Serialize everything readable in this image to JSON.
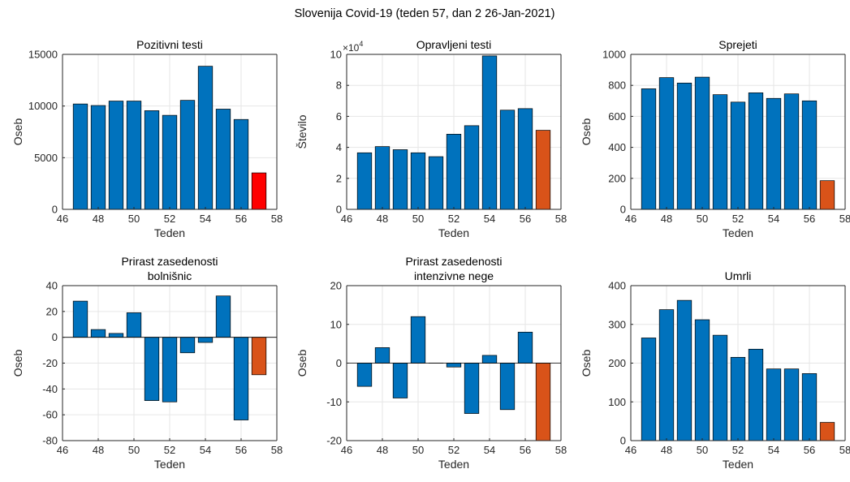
{
  "figure": {
    "title": "Slovenija Covid-19 (teden 57, dan 2 26-Jan-2021)"
  },
  "colors": {
    "main": "#0072bd",
    "highlight": "#d95319",
    "highlight_first": "#ff0000",
    "axis": "#262626",
    "grid": "#e6e6e6"
  },
  "chart_data": [
    {
      "type": "bar",
      "title": [
        "Pozitivni testi"
      ],
      "xlabel": "Teden",
      "ylabel": "Oseb",
      "xlim": [
        46,
        58
      ],
      "ylim": [
        0,
        15000
      ],
      "xticks": [
        46,
        48,
        50,
        52,
        54,
        56,
        58
      ],
      "yticks": [
        0,
        5000,
        10000,
        15000
      ],
      "yticklabels": [
        "0",
        "5000",
        "10000",
        "15000"
      ],
      "exponent": "",
      "grid": true,
      "x": [
        47,
        48,
        49,
        50,
        51,
        52,
        53,
        54,
        55,
        56,
        57
      ],
      "values": [
        10200,
        10050,
        10480,
        10480,
        9550,
        9100,
        10550,
        13850,
        9700,
        8700,
        3530
      ],
      "last_color": "highlight_first"
    },
    {
      "type": "bar",
      "title": [
        "Opravljeni testi"
      ],
      "xlabel": "Teden",
      "ylabel": "Število",
      "xlim": [
        46,
        58
      ],
      "ylim": [
        0,
        10
      ],
      "xticks": [
        46,
        48,
        50,
        52,
        54,
        56,
        58
      ],
      "yticks": [
        0,
        2,
        4,
        6,
        8,
        10
      ],
      "yticklabels": [
        "0",
        "2",
        "4",
        "6",
        "8",
        "10"
      ],
      "exponent": "×10",
      "exponent_power": "4",
      "grid": true,
      "x": [
        47,
        48,
        49,
        50,
        51,
        52,
        53,
        54,
        55,
        56,
        57
      ],
      "values": [
        3.65,
        4.05,
        3.85,
        3.65,
        3.4,
        4.85,
        5.4,
        9.9,
        6.4,
        6.5,
        5.1
      ],
      "last_color": "highlight"
    },
    {
      "type": "bar",
      "title": [
        "Sprejeti"
      ],
      "xlabel": "Teden",
      "ylabel": "Oseb",
      "xlim": [
        46,
        58
      ],
      "ylim": [
        0,
        1000
      ],
      "xticks": [
        46,
        48,
        50,
        52,
        54,
        56,
        58
      ],
      "yticks": [
        0,
        200,
        400,
        600,
        800,
        1000
      ],
      "yticklabels": [
        "0",
        "200",
        "400",
        "600",
        "800",
        "1000"
      ],
      "exponent": "",
      "grid": true,
      "x": [
        47,
        48,
        49,
        50,
        51,
        52,
        53,
        54,
        55,
        56,
        57
      ],
      "values": [
        778,
        850,
        815,
        853,
        740,
        692,
        752,
        716,
        745,
        700,
        185
      ],
      "last_color": "highlight"
    },
    {
      "type": "bar",
      "title": [
        "Prirast zasedenosti",
        "bolnišnic"
      ],
      "xlabel": "Teden",
      "ylabel": "Oseb",
      "xlim": [
        46,
        58
      ],
      "ylim": [
        -80,
        40
      ],
      "xticks": [
        46,
        48,
        50,
        52,
        54,
        56,
        58
      ],
      "yticks": [
        -80,
        -60,
        -40,
        -20,
        0,
        20,
        40
      ],
      "yticklabels": [
        "-80",
        "-60",
        "-40",
        "-20",
        "0",
        "20",
        "40"
      ],
      "exponent": "",
      "grid": true,
      "x": [
        47,
        48,
        49,
        50,
        51,
        52,
        53,
        54,
        55,
        56,
        57
      ],
      "values": [
        28,
        6,
        3,
        19,
        -49,
        -50,
        -12,
        -4,
        32,
        -64,
        -29
      ],
      "last_color": "highlight"
    },
    {
      "type": "bar",
      "title": [
        "Prirast zasedenosti",
        "intenzivne nege"
      ],
      "xlabel": "Teden",
      "ylabel": "Oseb",
      "xlim": [
        46,
        58
      ],
      "ylim": [
        -20,
        20
      ],
      "xticks": [
        46,
        48,
        50,
        52,
        54,
        56,
        58
      ],
      "yticks": [
        -20,
        -10,
        0,
        10,
        20
      ],
      "yticklabels": [
        "-20",
        "-10",
        "0",
        "10",
        "20"
      ],
      "exponent": "",
      "grid": true,
      "x": [
        47,
        48,
        49,
        50,
        51,
        52,
        53,
        54,
        55,
        56,
        57
      ],
      "values": [
        -6,
        4,
        -9,
        12,
        0,
        -1,
        -13,
        2,
        -12,
        8,
        -20
      ],
      "last_color": "highlight"
    },
    {
      "type": "bar",
      "title": [
        "Umrli"
      ],
      "xlabel": "Teden",
      "ylabel": "Oseb",
      "xlim": [
        46,
        58
      ],
      "ylim": [
        0,
        400
      ],
      "xticks": [
        46,
        48,
        50,
        52,
        54,
        56,
        58
      ],
      "yticks": [
        0,
        100,
        200,
        300,
        400
      ],
      "yticklabels": [
        "0",
        "100",
        "200",
        "300",
        "400"
      ],
      "exponent": "",
      "grid": true,
      "x": [
        47,
        48,
        49,
        50,
        51,
        52,
        53,
        54,
        55,
        56,
        57
      ],
      "values": [
        265,
        338,
        362,
        312,
        272,
        215,
        236,
        185,
        185,
        173,
        47
      ],
      "last_color": "highlight"
    }
  ]
}
